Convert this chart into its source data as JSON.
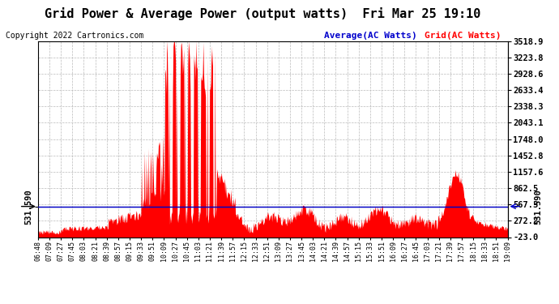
{
  "title": "Grid Power & Average Power (output watts)  Fri Mar 25 19:10",
  "copyright": "Copyright 2022 Cartronics.com",
  "legend_avg": "Average(AC Watts)",
  "legend_grid": "Grid(AC Watts)",
  "hline_value": 531.59,
  "hline_label": "531.590",
  "yticks_right": [
    3518.9,
    3223.8,
    2928.6,
    2633.4,
    2338.3,
    2043.1,
    1748.0,
    1452.8,
    1157.6,
    862.5,
    567.3,
    272.2,
    -23.0
  ],
  "ymin": -23.0,
  "ymax": 3518.9,
  "bg_color": "#ffffff",
  "grid_color": "#bbbbbb",
  "fill_color": "#ff0000",
  "avg_line_color": "#0000cc",
  "hline_color": "#000000",
  "title_fontsize": 11,
  "copyright_fontsize": 7,
  "xtick_fontsize": 6,
  "ytick_fontsize": 7.5,
  "legend_fontsize": 8,
  "xtick_labels": [
    "06:48",
    "07:09",
    "07:27",
    "07:45",
    "08:03",
    "08:21",
    "08:39",
    "08:57",
    "09:15",
    "09:33",
    "09:51",
    "10:09",
    "10:27",
    "10:45",
    "11:03",
    "11:21",
    "11:39",
    "11:57",
    "12:15",
    "12:33",
    "12:51",
    "13:09",
    "13:27",
    "13:45",
    "14:03",
    "14:21",
    "14:39",
    "14:57",
    "15:15",
    "15:33",
    "15:51",
    "16:09",
    "16:27",
    "16:45",
    "17:03",
    "17:21",
    "17:39",
    "17:57",
    "18:15",
    "18:33",
    "18:51",
    "19:09"
  ]
}
